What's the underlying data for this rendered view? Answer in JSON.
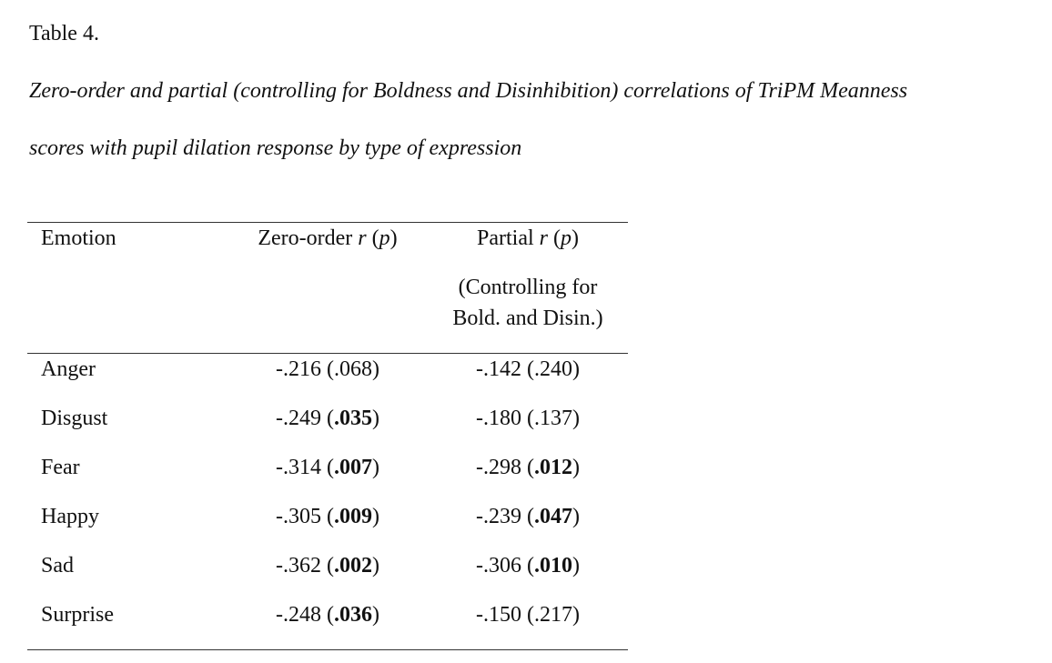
{
  "label": "Table 4.",
  "title_lines": [
    "Zero-order and partial (controlling for Boldness and Disinhibition) correlations of TriPM Meanness",
    "scores with pupil dilation response by type of expression"
  ],
  "table": {
    "header": [
      [
        {
          "text": "Emotion"
        }
      ],
      [
        {
          "text": "Zero-order "
        },
        {
          "text": "r",
          "italic": true
        },
        {
          "text": " ("
        },
        {
          "text": "p",
          "italic": true
        },
        {
          "text": ")"
        }
      ],
      [
        {
          "text": "Partial "
        },
        {
          "text": "r",
          "italic": true
        },
        {
          "text": " ("
        },
        {
          "text": "p",
          "italic": true
        },
        {
          "text": ")"
        }
      ]
    ],
    "header_note": [
      "(Controlling for",
      "Bold. and Disin.)"
    ],
    "rows": [
      [
        [
          {
            "text": "Anger"
          }
        ],
        [
          {
            "text": "-.216 (.068)"
          }
        ],
        [
          {
            "text": "-.142 (.240)"
          }
        ]
      ],
      [
        [
          {
            "text": "Disgust"
          }
        ],
        [
          {
            "text": "-.249 ("
          },
          {
            "text": ".035",
            "bold": true
          },
          {
            "text": ")"
          }
        ],
        [
          {
            "text": "-.180 (.137)"
          }
        ]
      ],
      [
        [
          {
            "text": "Fear"
          }
        ],
        [
          {
            "text": "-.314 ("
          },
          {
            "text": ".007",
            "bold": true
          },
          {
            "text": ")"
          }
        ],
        [
          {
            "text": "-.298 ("
          },
          {
            "text": ".012",
            "bold": true
          },
          {
            "text": ")"
          }
        ]
      ],
      [
        [
          {
            "text": "Happy"
          }
        ],
        [
          {
            "text": "-.305 ("
          },
          {
            "text": ".009",
            "bold": true
          },
          {
            "text": ")"
          }
        ],
        [
          {
            "text": "-.239 ("
          },
          {
            "text": ".047",
            "bold": true
          },
          {
            "text": ")"
          }
        ]
      ],
      [
        [
          {
            "text": "Sad"
          }
        ],
        [
          {
            "text": "-.362 ("
          },
          {
            "text": ".002",
            "bold": true
          },
          {
            "text": ")"
          }
        ],
        [
          {
            "text": "-.306 ("
          },
          {
            "text": ".010",
            "bold": true
          },
          {
            "text": ")"
          }
        ]
      ],
      [
        [
          {
            "text": "Surprise"
          }
        ],
        [
          {
            "text": "-.248 ("
          },
          {
            "text": ".036",
            "bold": true
          },
          {
            "text": ")"
          }
        ],
        [
          {
            "text": "-.150 (.217)"
          }
        ]
      ]
    ]
  }
}
